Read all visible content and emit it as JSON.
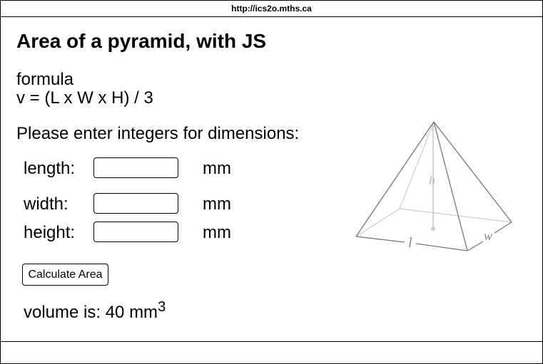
{
  "browser": {
    "url": "http://ics2o.mths.ca"
  },
  "page": {
    "title": "Area of a pyramid, with JS",
    "formula_label": "formula",
    "formula": "v = (L x W x H) / 3",
    "instructions": "Please enter integers for dimensions:"
  },
  "form": {
    "length": {
      "label": "length:",
      "value": "",
      "unit": "mm"
    },
    "width": {
      "label": "width:",
      "value": "",
      "unit": "mm"
    },
    "height": {
      "label": "height:",
      "value": "",
      "unit": "mm"
    },
    "button_label": "Calculate Area"
  },
  "result": {
    "text": "volume is: 40 mm",
    "exponent": "3"
  },
  "diagram": {
    "height_label": "h",
    "length_label": "l",
    "width_label": "w",
    "line_color": "#777777",
    "hidden_line_color": "#cccccc",
    "label_color": "#888888"
  }
}
